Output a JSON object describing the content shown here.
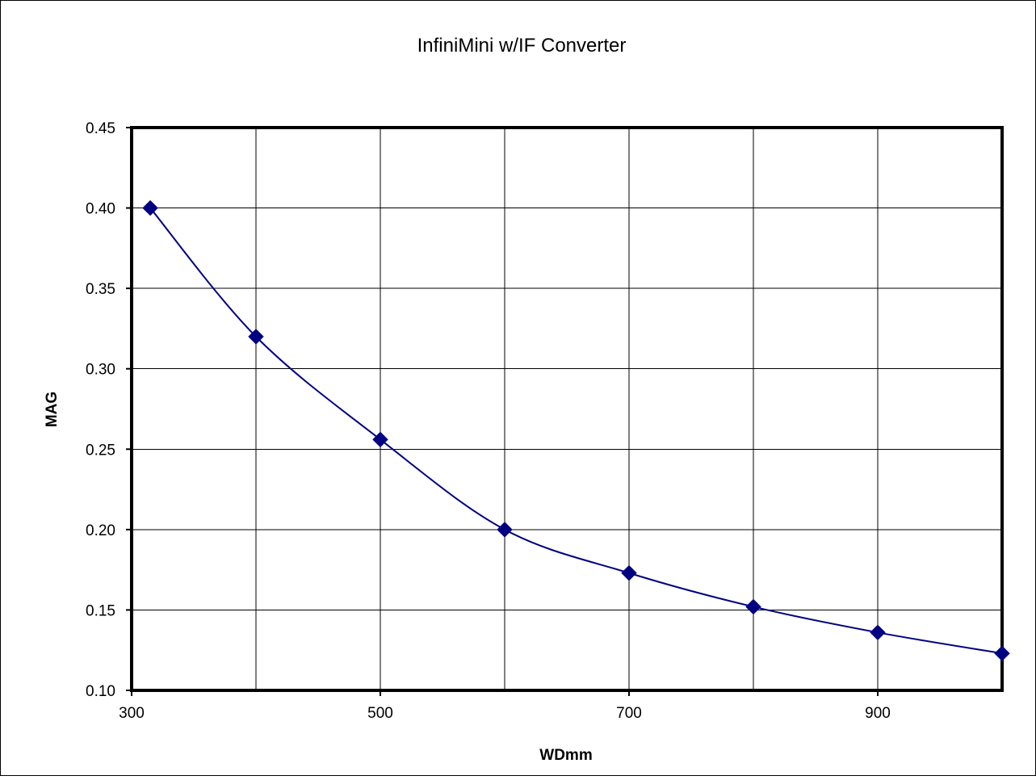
{
  "chart_data": {
    "type": "line",
    "title": "InfiniMini w/IF  Converter",
    "xlabel": "WDmm",
    "ylabel": "MAG",
    "xlim": [
      300,
      1000
    ],
    "ylim": [
      0.1,
      0.45
    ],
    "x_ticks": [
      300,
      500,
      700,
      900
    ],
    "x_gridlines": [
      300,
      400,
      500,
      600,
      700,
      800,
      900,
      1000
    ],
    "y_ticks": [
      0.1,
      0.15,
      0.2,
      0.25,
      0.3,
      0.35,
      0.4,
      0.45
    ],
    "y_tick_labels": [
      "0.10",
      "0.15",
      "0.20",
      "0.25",
      "0.30",
      "0.35",
      "0.40",
      "0.45"
    ],
    "grid": true,
    "legend": "none",
    "smooth": true,
    "series": [
      {
        "color": "#000080",
        "marker": "diamond",
        "x": [
          315,
          400,
          500,
          600,
          700,
          800,
          900,
          1000
        ],
        "y": [
          0.4,
          0.32,
          0.256,
          0.2,
          0.173,
          0.152,
          0.136,
          0.123
        ]
      }
    ]
  }
}
